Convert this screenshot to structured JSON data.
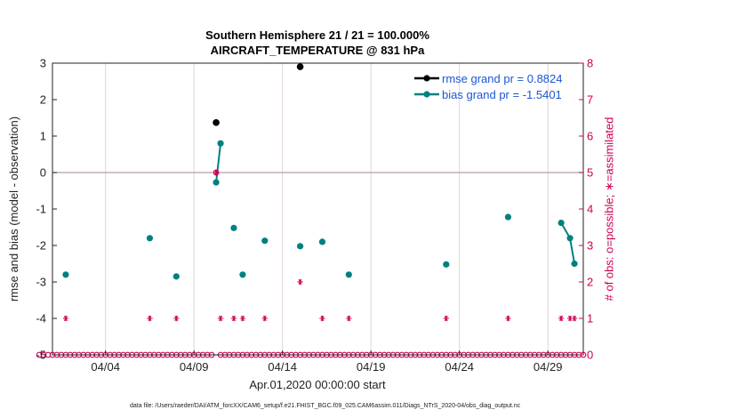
{
  "chart_data": {
    "type": "line",
    "title_line1": "Southern Hemisphere 21 / 21 = 100.000%",
    "title_line2": "AIRCRAFT_TEMPERATURE @ 831 hPa",
    "ylabel_left": "rmse and bias (model - observation)",
    "ylabel_right": "# of obs: o=possible; ∗=assimilated",
    "xlabel": "Apr.01,2020 00:00:00 start",
    "footnote": "data file: /Users/raeder/DAI/ATM_forcXX/CAM6_setup/f.e21.FHIST_BGC.f09_025.CAM6assim.011/Diags_NTrS_2020-04/obs_diag_output.nc",
    "x_ticks": [
      {
        "x": 4,
        "label": "04/04"
      },
      {
        "x": 9,
        "label": "04/09"
      },
      {
        "x": 14,
        "label": "04/14"
      },
      {
        "x": 19,
        "label": "04/19"
      },
      {
        "x": 24,
        "label": "04/24"
      },
      {
        "x": 29,
        "label": "04/29"
      }
    ],
    "xlim": [
      1,
      31
    ],
    "ylim_left": [
      -5,
      3
    ],
    "yticks_left": [
      -5,
      -4,
      -3,
      -2,
      -1,
      0,
      1,
      2,
      3
    ],
    "ylim_right": [
      0,
      8
    ],
    "yticks_right": [
      0,
      1,
      2,
      3,
      4,
      5,
      6,
      7,
      8
    ],
    "series": [
      {
        "name": "rmse",
        "legend": "rmse grand pr = 0.8824",
        "color": "#000000",
        "points": [
          [
            10.25,
            1.37
          ],
          [
            15.0,
            2.9
          ]
        ]
      },
      {
        "name": "bias",
        "legend": "bias grand pr = -1.5401",
        "color": "#008080",
        "points": [
          [
            1.75,
            -2.8
          ],
          [
            6.5,
            -1.8
          ],
          [
            8.0,
            -2.85
          ],
          [
            10.25,
            -0.27
          ],
          [
            10.5,
            0.8
          ],
          [
            11.25,
            -1.52
          ],
          [
            11.75,
            -2.8
          ],
          [
            13.0,
            -1.87
          ],
          [
            15.0,
            -2.02
          ],
          [
            16.25,
            -1.9
          ],
          [
            17.75,
            -2.8
          ],
          [
            23.25,
            -2.52
          ],
          [
            26.75,
            -1.22
          ],
          [
            29.75,
            -1.38
          ],
          [
            30.25,
            -1.8
          ],
          [
            30.5,
            -2.5
          ]
        ],
        "segments": [
          [
            3,
            4
          ],
          [
            13,
            14,
            15
          ]
        ]
      },
      {
        "name": "obs_possible",
        "color": "#cc0055",
        "marker": "o",
        "x_start": 0.25,
        "x_step": 0.25,
        "count": 124,
        "y_value": 0,
        "overrides": [
          [
            10.25,
            5
          ]
        ]
      },
      {
        "name": "obs_assimilated",
        "color": "#cc0055",
        "marker": "*",
        "points": [
          [
            1.75,
            1
          ],
          [
            6.5,
            1
          ],
          [
            8.0,
            1
          ],
          [
            10.25,
            5
          ],
          [
            10.5,
            1
          ],
          [
            11.25,
            1
          ],
          [
            11.75,
            1
          ],
          [
            13.0,
            1
          ],
          [
            15.0,
            2
          ],
          [
            16.25,
            1
          ],
          [
            17.75,
            1
          ],
          [
            23.25,
            1
          ],
          [
            26.75,
            1
          ],
          [
            29.75,
            1
          ],
          [
            30.25,
            1
          ],
          [
            30.5,
            1
          ]
        ]
      }
    ]
  }
}
